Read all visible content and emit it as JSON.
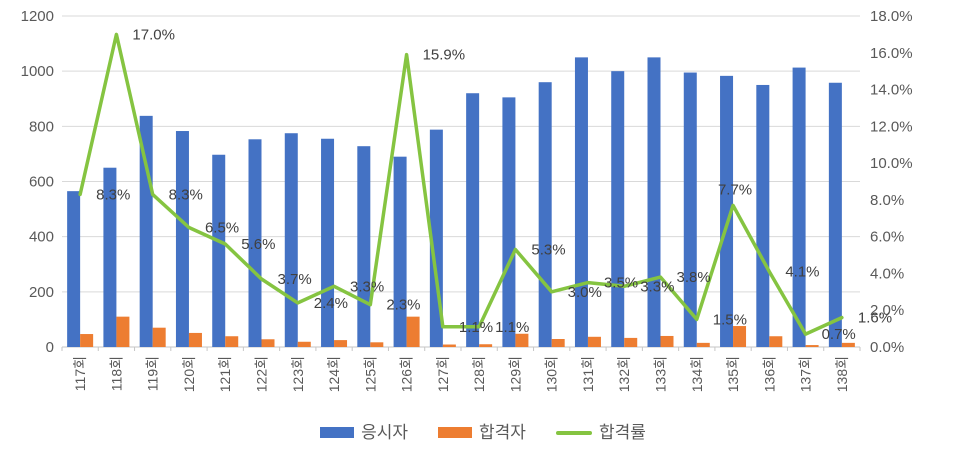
{
  "chart_data": {
    "type": "combo",
    "title": "",
    "categories": [
      "117회",
      "118회",
      "119회",
      "120회",
      "121회",
      "122회",
      "123회",
      "124회",
      "125회",
      "126회",
      "127회",
      "128회",
      "129회",
      "130회",
      "131회",
      "132회",
      "133회",
      "134회",
      "135회",
      "136회",
      "137회",
      "138회"
    ],
    "series": [
      {
        "name": "응시자",
        "type": "bar",
        "color": "#4472C4",
        "values": [
          565,
          650,
          838,
          783,
          697,
          753,
          775,
          755,
          728,
          690,
          788,
          920,
          905,
          960,
          1050,
          1000,
          1050,
          995,
          983,
          950,
          1013,
          958
        ]
      },
      {
        "name": "합격자",
        "type": "bar",
        "color": "#ED7D31",
        "values": [
          47,
          110,
          70,
          51,
          39,
          28,
          19,
          25,
          17,
          110,
          9,
          10,
          48,
          29,
          37,
          33,
          40,
          15,
          76,
          39,
          7,
          15
        ]
      },
      {
        "name": "합격률",
        "type": "line",
        "color": "#85C441",
        "values": [
          8.3,
          17.0,
          8.3,
          6.5,
          5.6,
          3.7,
          2.4,
          3.3,
          2.3,
          15.9,
          1.1,
          1.1,
          5.3,
          3.0,
          3.5,
          3.3,
          3.8,
          1.5,
          7.7,
          4.1,
          0.7,
          1.6
        ],
        "labels": [
          "8.3%",
          "17.0%",
          "8.3%",
          "6.5%",
          "5.6%",
          "3.7%",
          "2.4%",
          "3.3%",
          "2.3%",
          "15.9%",
          "1.1%",
          "1.1%",
          "5.3%",
          "3.0%",
          "3.5%",
          "3.3%",
          "3.8%",
          "1.5%",
          "7.7%",
          "4.1%",
          "0.7%",
          "1.6%"
        ]
      }
    ],
    "left_axis": {
      "min": 0,
      "max": 1200,
      "step": 200,
      "ticks": [
        "0",
        "200",
        "400",
        "600",
        "800",
        "1000",
        "1200"
      ]
    },
    "right_axis": {
      "min": 0,
      "max": 18,
      "step": 2,
      "ticks": [
        "0.0%",
        "2.0%",
        "4.0%",
        "6.0%",
        "8.0%",
        "10.0%",
        "12.0%",
        "14.0%",
        "16.0%",
        "18.0%"
      ]
    },
    "grid": true,
    "legend_position": "bottom",
    "label_placement": {
      "default": "right",
      "above_indices": [
        18
      ]
    }
  },
  "legend": {
    "items": [
      {
        "label": "응시자",
        "swatch": "bar"
      },
      {
        "label": "합격자",
        "swatch": "bar"
      },
      {
        "label": "합격률",
        "swatch": "line"
      }
    ]
  },
  "colors": {
    "applicants": "#4472C4",
    "passers": "#ED7D31",
    "pass_rate": "#85C441",
    "gridline": "#D9D9D9",
    "axis_line": "#C6C6C6",
    "axis_text": "#595959",
    "data_label_text": "#404040"
  }
}
